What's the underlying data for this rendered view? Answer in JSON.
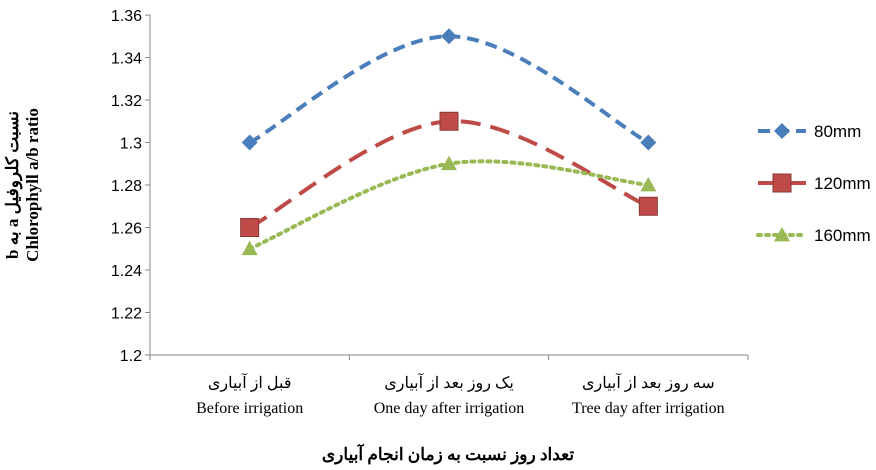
{
  "chart_data": {
    "type": "line",
    "categories": [
      [
        "قبل از آبیاری",
        "Before irrigation"
      ],
      [
        "یک روز بعد از آبیاری",
        "One day after irrigation"
      ],
      [
        "سه روز بعد از آبیاری",
        "Tree day after irrigation"
      ]
    ],
    "series": [
      {
        "name": "80mm",
        "values": [
          1.3,
          1.35,
          1.3
        ],
        "color": "#4a7ebb",
        "marker": "diamond",
        "dash": "dashed"
      },
      {
        "name": "120mm",
        "values": [
          1.26,
          1.31,
          1.27
        ],
        "color": "#be4b48",
        "marker": "square",
        "dash": "long-dash"
      },
      {
        "name": "160mm",
        "values": [
          1.25,
          1.29,
          1.28
        ],
        "color": "#98b954",
        "marker": "triangle",
        "dash": "dotted"
      }
    ],
    "ylim": [
      1.2,
      1.36
    ],
    "yticks": [
      "1.2",
      "1.22",
      "1.24",
      "1.26",
      "1.28",
      "1.3",
      "1.32",
      "1.34",
      "1.36"
    ],
    "ylabel_fa": "نسبت کلروفیل a به b",
    "ylabel_en": "Chlorophyll a/b ratio",
    "xlabel": "تعداد روز نسبت به زمان انجام آبیاری",
    "legend_position": "right",
    "grid": false
  }
}
